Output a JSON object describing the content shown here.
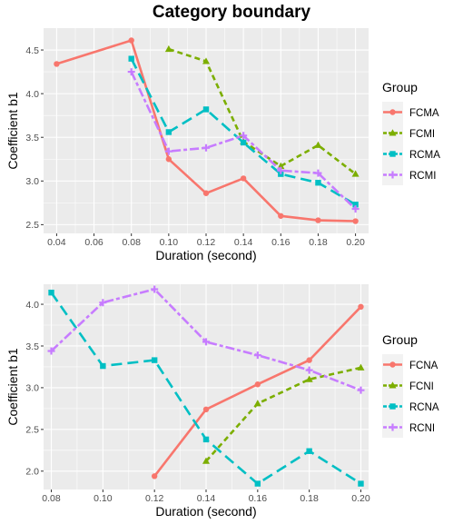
{
  "title": "Category boundary",
  "chart_data": [
    {
      "type": "line",
      "xlabel": "Duration (second)",
      "ylabel": "Coefficient b1",
      "xlim": [
        0.033,
        0.207
      ],
      "ylim": [
        2.4,
        4.75
      ],
      "xticks": [
        "0.04",
        "0.06",
        "0.08",
        "0.10",
        "0.12",
        "0.14",
        "0.16",
        "0.18",
        "0.20"
      ],
      "yticks": [
        "2.5",
        "3.0",
        "3.5",
        "4.0",
        "4.5"
      ],
      "grid": true,
      "legend_title": "Group",
      "legend_position": "right",
      "series": [
        {
          "name": "FCMA",
          "color": "#F8766D",
          "marker": "circle",
          "dash": "solid",
          "x": [
            0.04,
            0.08,
            0.1,
            0.12,
            0.14,
            0.16,
            0.18,
            0.2
          ],
          "y": [
            4.34,
            4.61,
            3.25,
            2.86,
            3.03,
            2.6,
            2.55,
            2.54
          ]
        },
        {
          "name": "FCMI",
          "color": "#7CAE00",
          "marker": "triangle",
          "dash": "dashed",
          "x": [
            0.1,
            0.12,
            0.14,
            0.16,
            0.18,
            0.2
          ],
          "y": [
            4.51,
            4.37,
            3.45,
            3.17,
            3.41,
            3.08
          ]
        },
        {
          "name": "RCMA",
          "color": "#00BFC4",
          "marker": "square",
          "dash": "longdash",
          "x": [
            0.08,
            0.1,
            0.12,
            0.14,
            0.16,
            0.18,
            0.2
          ],
          "y": [
            4.4,
            3.56,
            3.82,
            3.44,
            3.08,
            2.98,
            2.73
          ]
        },
        {
          "name": "RCMI",
          "color": "#C77CFF",
          "marker": "cross",
          "dash": "twodash",
          "x": [
            0.08,
            0.1,
            0.12,
            0.14,
            0.16,
            0.18,
            0.2
          ],
          "y": [
            4.25,
            3.34,
            3.38,
            3.52,
            3.12,
            3.09,
            2.68
          ]
        }
      ]
    },
    {
      "type": "line",
      "xlabel": "Duration (second)",
      "ylabel": "Coefficient b1",
      "xlim": [
        0.077,
        0.203
      ],
      "ylim": [
        1.78,
        4.24
      ],
      "xticks": [
        "0.08",
        "0.10",
        "0.12",
        "0.14",
        "0.16",
        "0.18",
        "0.20"
      ],
      "yticks": [
        "2.0",
        "2.5",
        "3.0",
        "3.5",
        "4.0"
      ],
      "grid": true,
      "legend_title": "Group",
      "legend_position": "right",
      "series": [
        {
          "name": "FCNA",
          "color": "#F8766D",
          "marker": "circle",
          "dash": "solid",
          "x": [
            0.12,
            0.14,
            0.16,
            0.18,
            0.2
          ],
          "y": [
            1.94,
            2.74,
            3.04,
            3.33,
            3.97
          ]
        },
        {
          "name": "FCNI",
          "color": "#7CAE00",
          "marker": "triangle",
          "dash": "dashed",
          "x": [
            0.14,
            0.16,
            0.18,
            0.2
          ],
          "y": [
            2.12,
            2.81,
            3.1,
            3.24
          ]
        },
        {
          "name": "RCNA",
          "color": "#00BFC4",
          "marker": "square",
          "dash": "longdash",
          "x": [
            0.08,
            0.1,
            0.12,
            0.14,
            0.16,
            0.18,
            0.2
          ],
          "y": [
            4.14,
            3.26,
            3.33,
            2.38,
            1.85,
            2.24,
            1.85
          ]
        },
        {
          "name": "RCNI",
          "color": "#C77CFF",
          "marker": "cross",
          "dash": "twodash",
          "x": [
            0.08,
            0.1,
            0.12,
            0.14,
            0.16,
            0.18,
            0.2
          ],
          "y": [
            3.44,
            4.02,
            4.18,
            3.55,
            3.39,
            3.21,
            2.97
          ]
        }
      ]
    }
  ]
}
